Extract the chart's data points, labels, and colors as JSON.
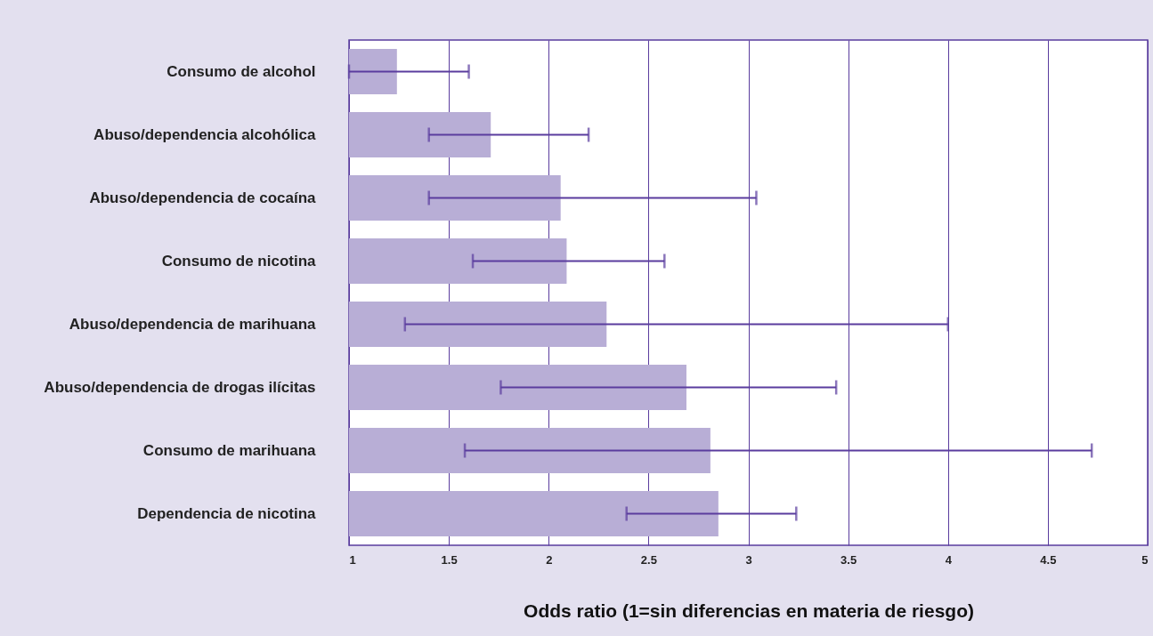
{
  "chart_data": {
    "type": "bar",
    "orientation": "horizontal",
    "xlabel": "Odds ratio (1=sin diferencias en materia de riesgo)",
    "categories": [
      "Consumo de alcohol",
      "Abuso/dependencia alcohólica",
      "Abuso/dependencia de cocaína",
      "Consumo de nicotina",
      "Abuso/dependencia de marihuana",
      "Abuso/dependencia de drogas ilícitas",
      "Consumo de marihuana",
      "Dependencia de nicotina"
    ],
    "values": [
      1.24,
      1.71,
      2.06,
      2.09,
      2.29,
      2.69,
      2.81,
      2.85
    ],
    "errors": [
      [
        1.0,
        1.6
      ],
      [
        1.4,
        2.2
      ],
      [
        1.4,
        3.04
      ],
      [
        1.62,
        2.58
      ],
      [
        1.28,
        4.0
      ],
      [
        1.76,
        3.44
      ],
      [
        1.58,
        4.72
      ],
      [
        2.39,
        3.24
      ]
    ],
    "color": "#b8aed6",
    "xlim": [
      1,
      5
    ],
    "xticks": [
      1,
      1.5,
      2,
      2.5,
      3,
      3.5,
      4,
      4.5,
      5
    ],
    "grid": "x"
  }
}
